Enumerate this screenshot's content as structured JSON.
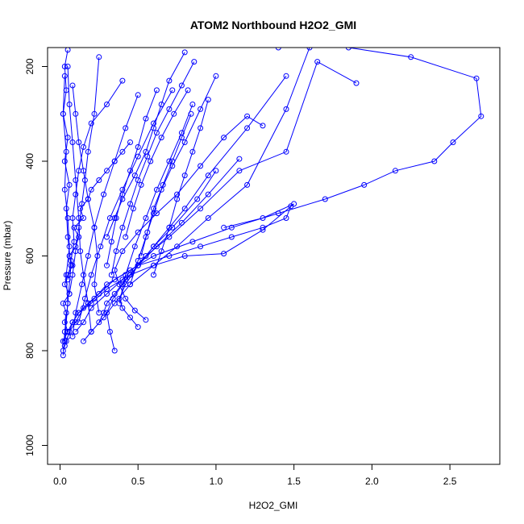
{
  "chart_data": {
    "type": "line",
    "title": "ATOM2 Northbound H2O2_GMI",
    "xlabel": "H2O2_GMI",
    "ylabel": "Pressure (mbar)",
    "xlim": [
      -0.08,
      2.82
    ],
    "ylim": [
      1040,
      160
    ],
    "y_reversed": true,
    "xticks": [
      0.0,
      0.5,
      1.0,
      1.5,
      2.0,
      2.5
    ],
    "xtick_labels": [
      "0.0",
      "0.5",
      "1.0",
      "1.5",
      "2.0",
      "2.5"
    ],
    "yticks": [
      200,
      400,
      600,
      800,
      1000
    ],
    "ytick_labels": [
      "200",
      "400",
      "600",
      "800",
      "1000"
    ],
    "grid": false,
    "color": "#0000ff",
    "series": [
      {
        "x": [
          0.02,
          0.05,
          0.03,
          0.04,
          0.02,
          0.06,
          0.03,
          0.05,
          0.08,
          0.06,
          0.1,
          0.12,
          0.09,
          0.15,
          0.13,
          0.18,
          0.2,
          0.25,
          0.3,
          0.35,
          0.4,
          0.45
        ],
        "y": [
          780,
          760,
          740,
          720,
          700,
          680,
          660,
          640,
          620,
          600,
          580,
          560,
          540,
          520,
          500,
          480,
          460,
          440,
          420,
          400,
          380,
          360
        ]
      },
      {
        "x": [
          0.03,
          0.05,
          0.08,
          0.12,
          0.18,
          0.25,
          0.35,
          0.5,
          0.7,
          0.9,
          1.1,
          1.3,
          1.45,
          1.48
        ],
        "y": [
          790,
          770,
          740,
          720,
          700,
          680,
          650,
          620,
          600,
          580,
          560,
          540,
          520,
          495
        ]
      },
      {
        "x": [
          0.02,
          0.04,
          0.06,
          0.1,
          0.15,
          0.22,
          0.3,
          0.45,
          0.6,
          0.85,
          1.1,
          1.4,
          1.7,
          1.95,
          2.15,
          2.4,
          2.52,
          2.7,
          2.67,
          2.25,
          1.85,
          1.4
        ],
        "y": [
          800,
          780,
          760,
          740,
          710,
          690,
          660,
          630,
          600,
          570,
          540,
          510,
          480,
          450,
          420,
          400,
          360,
          305,
          225,
          180,
          160,
          160
        ]
      },
      {
        "x": [
          0.05,
          0.08,
          0.12,
          0.2,
          0.3,
          0.45,
          0.6,
          0.8,
          1.05,
          1.3,
          1.5,
          1.3,
          1.05
        ],
        "y": [
          760,
          740,
          720,
          700,
          670,
          640,
          620,
          600,
          595,
          545,
          490,
          520,
          540
        ]
      },
      {
        "x": [
          0.03,
          0.05,
          0.07,
          0.05,
          0.04,
          0.06,
          0.03,
          0.05,
          0.02,
          0.04,
          0.03,
          0.05
        ],
        "y": [
          780,
          700,
          620,
          560,
          500,
          450,
          400,
          350,
          300,
          250,
          200,
          165
        ]
      },
      {
        "x": [
          0.02,
          0.03,
          0.05,
          0.04,
          0.06,
          0.05,
          0.03,
          0.04,
          0.02,
          0.03
        ],
        "y": [
          810,
          760,
          700,
          640,
          580,
          520,
          460,
          380,
          300,
          220
        ]
      },
      {
        "x": [
          0.1,
          0.15,
          0.2,
          0.3,
          0.4,
          0.55,
          0.7,
          0.9,
          1.15,
          1.45,
          1.65,
          1.9
        ],
        "y": [
          760,
          740,
          710,
          680,
          650,
          600,
          560,
          500,
          420,
          380,
          190,
          235
        ]
      },
      {
        "x": [
          0.15,
          0.2,
          0.28,
          0.35,
          0.45,
          0.6,
          0.75,
          0.95,
          1.2,
          1.45,
          1.6
        ],
        "y": [
          780,
          760,
          730,
          700,
          660,
          620,
          580,
          520,
          450,
          290,
          160
        ]
      },
      {
        "x": [
          0.25,
          0.28,
          0.3,
          0.35,
          0.42,
          0.5,
          0.62,
          0.78,
          0.95,
          1.15
        ],
        "y": [
          740,
          720,
          700,
          680,
          650,
          620,
          580,
          530,
          470,
          395
        ]
      },
      {
        "x": [
          0.35,
          0.32,
          0.3,
          0.34,
          0.4,
          0.5,
          0.6,
          0.72,
          0.88,
          1.0
        ],
        "y": [
          800,
          760,
          720,
          690,
          660,
          620,
          580,
          540,
          480,
          420
        ]
      },
      {
        "x": [
          0.5,
          0.45,
          0.4,
          0.38,
          0.42,
          0.5,
          0.6,
          0.7,
          0.8,
          0.95,
          1.2,
          1.45
        ],
        "y": [
          750,
          730,
          710,
          690,
          660,
          620,
          580,
          540,
          500,
          430,
          330,
          220
        ]
      },
      {
        "x": [
          0.55,
          0.48,
          0.42,
          0.38,
          0.35,
          0.4,
          0.5,
          0.62,
          0.75,
          0.9,
          1.05,
          1.2,
          1.3
        ],
        "y": [
          735,
          715,
          690,
          660,
          630,
          590,
          550,
          510,
          470,
          410,
          350,
          305,
          325
        ]
      },
      {
        "x": [
          0.2,
          0.18,
          0.15,
          0.13,
          0.12,
          0.1,
          0.08,
          0.06,
          0.05
        ],
        "y": [
          760,
          700,
          640,
          590,
          520,
          440,
          360,
          280,
          200
        ]
      },
      {
        "x": [
          0.25,
          0.22,
          0.24,
          0.22,
          0.18,
          0.15,
          0.12,
          0.1,
          0.08
        ],
        "y": [
          720,
          660,
          600,
          540,
          480,
          420,
          360,
          300,
          240
        ]
      },
      {
        "x": [
          0.3,
          0.33,
          0.36,
          0.4,
          0.45,
          0.5,
          0.55,
          0.62
        ],
        "y": [
          620,
          570,
          520,
          470,
          420,
          370,
          310,
          250
        ]
      },
      {
        "x": [
          0.45,
          0.5,
          0.55,
          0.6,
          0.65,
          0.72,
          0.8,
          0.9,
          1.0
        ],
        "y": [
          660,
          610,
          560,
          510,
          460,
          410,
          360,
          290,
          220
        ]
      },
      {
        "x": [
          0.6,
          0.65,
          0.7,
          0.75,
          0.8,
          0.85,
          0.9,
          0.95
        ],
        "y": [
          640,
          590,
          540,
          480,
          430,
          380,
          330,
          270
        ]
      },
      {
        "x": [
          0.3,
          0.35,
          0.4,
          0.48,
          0.55,
          0.6,
          0.65,
          0.7,
          0.8
        ],
        "y": [
          560,
          520,
          480,
          430,
          380,
          330,
          280,
          230,
          170
        ]
      },
      {
        "x": [
          0.38,
          0.42,
          0.48,
          0.55,
          0.62,
          0.7,
          0.78,
          0.85
        ],
        "y": [
          700,
          640,
          580,
          520,
          460,
          400,
          340,
          280
        ]
      },
      {
        "x": [
          0.08,
          0.1,
          0.14,
          0.18,
          0.22,
          0.28,
          0.35,
          0.42,
          0.5
        ],
        "y": [
          770,
          720,
          660,
          600,
          540,
          470,
          400,
          330,
          260
        ]
      },
      {
        "x": [
          0.12,
          0.16,
          0.2,
          0.26,
          0.32,
          0.4,
          0.5,
          0.6,
          0.72
        ],
        "y": [
          740,
          690,
          640,
          580,
          520,
          460,
          390,
          320,
          250
        ]
      },
      {
        "x": [
          0.06,
          0.08,
          0.1,
          0.12,
          0.14,
          0.16,
          0.18,
          0.22,
          0.25
        ],
        "y": [
          680,
          640,
          590,
          540,
          490,
          440,
          380,
          300,
          180
        ]
      },
      {
        "x": [
          0.05,
          0.07,
          0.09,
          0.08,
          0.1,
          0.12,
          0.15,
          0.2,
          0.3,
          0.4
        ],
        "y": [
          650,
          610,
          570,
          520,
          470,
          420,
          370,
          320,
          280,
          230
        ]
      },
      {
        "x": [
          0.42,
          0.47,
          0.52,
          0.58,
          0.65,
          0.73,
          0.82
        ],
        "y": [
          560,
          500,
          450,
          400,
          350,
          300,
          250
        ]
      },
      {
        "x": [
          0.52,
          0.56,
          0.6,
          0.66,
          0.72,
          0.78,
          0.84
        ],
        "y": [
          600,
          550,
          500,
          450,
          400,
          350,
          300
        ]
      },
      {
        "x": [
          0.33,
          0.36,
          0.4,
          0.45,
          0.5,
          0.56,
          0.62,
          0.7,
          0.78,
          0.86
        ],
        "y": [
          640,
          590,
          540,
          490,
          440,
          390,
          340,
          290,
          240,
          190
        ]
      }
    ]
  }
}
